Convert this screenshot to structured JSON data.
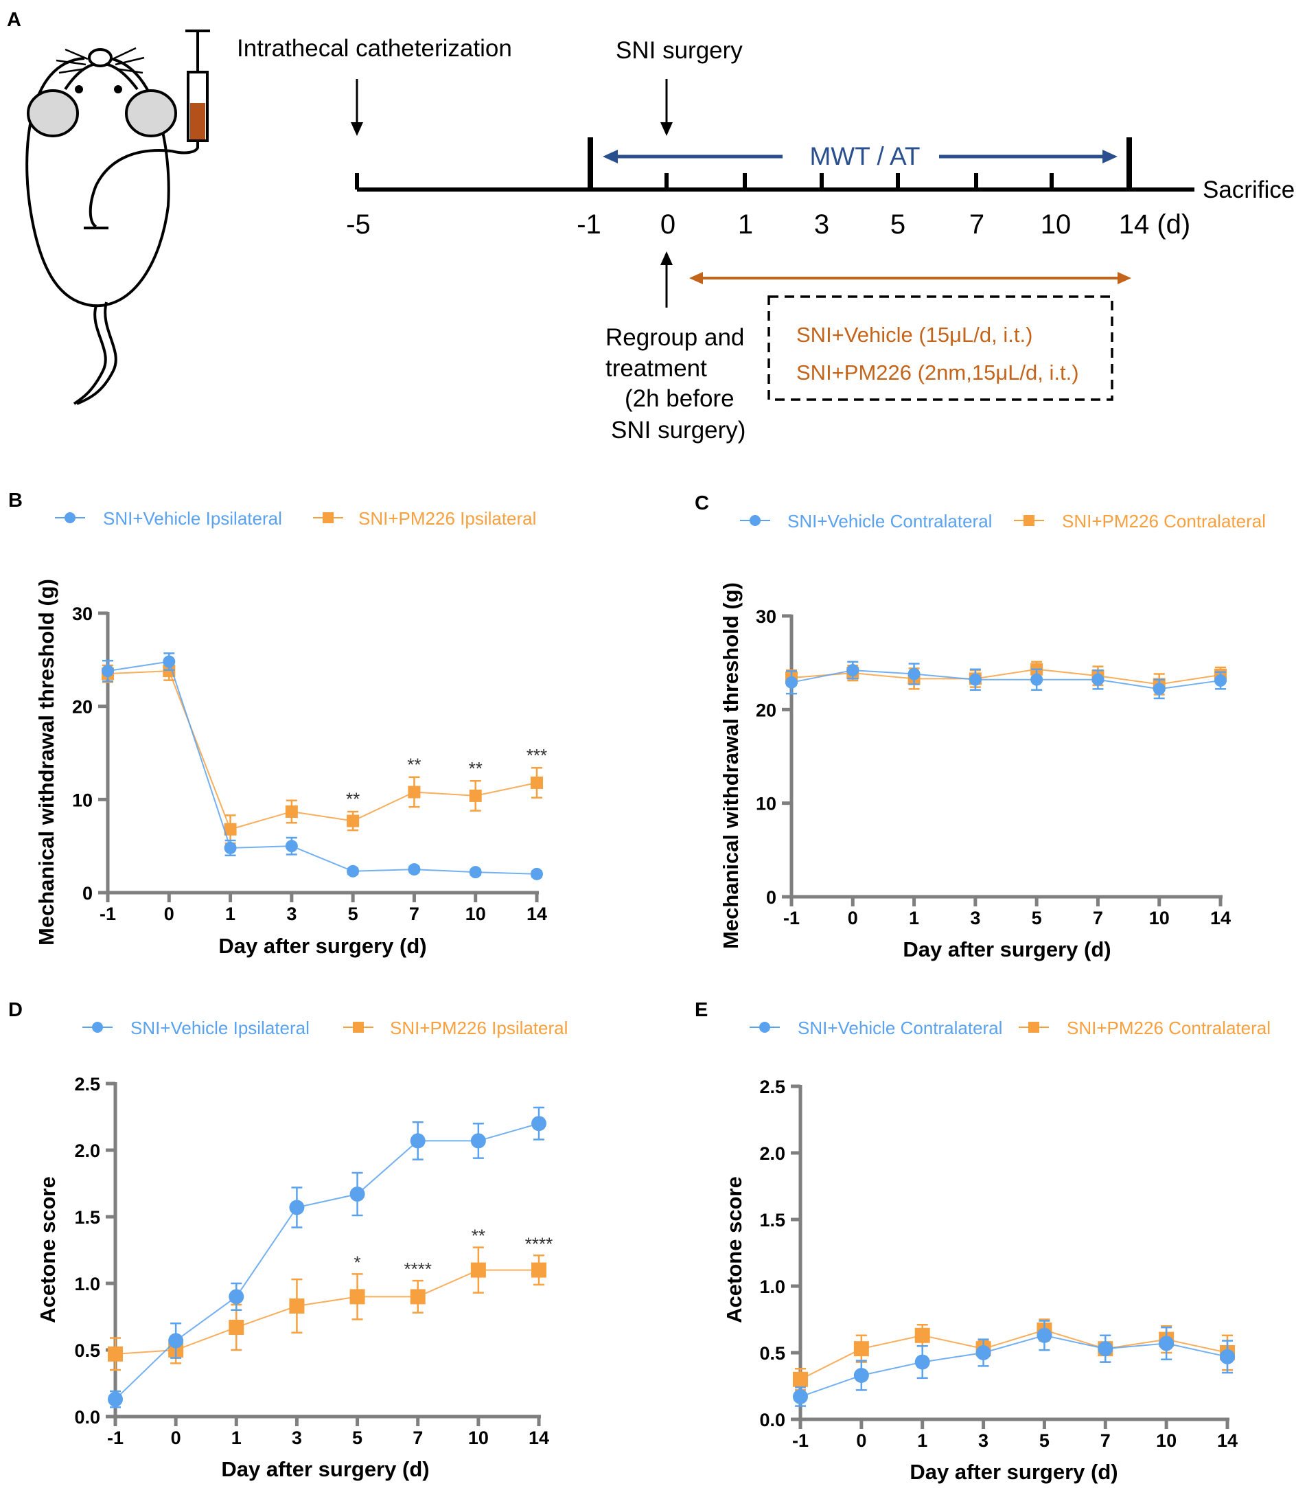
{
  "colors": {
    "vehicle": "#5aa2ee",
    "pm226": "#f7a03f",
    "timeline_blue": "#2a4f8f",
    "timeline_orange": "#c4641a",
    "syringe_fill": "#b4501a",
    "axis": "#7f7f7f",
    "text": "#000000"
  },
  "panel_labels": {
    "a": "A",
    "b": "B",
    "c": "C",
    "d": "D",
    "e": "E"
  },
  "timeline": {
    "catheterization": "Intrathecal catheterization",
    "sni_surgery": "SNI surgery",
    "mwt_label": "MWT / AT",
    "sacrifice": "Sacrifice",
    "ticks": [
      "-5",
      "-1",
      "0",
      "1",
      "3",
      "5",
      "7",
      "10",
      "14 (d)"
    ],
    "regroup_lines": [
      "Regroup  and",
      "treatment",
      "(2h before",
      "SNI surgery)"
    ],
    "groups": [
      "SNI+Vehicle (15μL/d, i.t.)",
      "SNI+PM226 (2nm,15μL/d, i.t.)"
    ]
  },
  "chart_data": [
    {
      "panel": "B",
      "type": "line",
      "categories": [
        "-1",
        "0",
        "1",
        "3",
        "5",
        "7",
        "10",
        "14"
      ],
      "xlabel": "Day after surgery (d)",
      "ylabel": "Mechanical withdrawal threshold (g)",
      "ylim": [
        0,
        30
      ],
      "yticks": [
        "0",
        "10",
        "20",
        "30"
      ],
      "legend_placement": "top",
      "series": [
        {
          "name": "SNI+Vehicle Ipsilateral",
          "marker": "circle",
          "values": [
            23.8,
            24.8,
            4.8,
            5.0,
            2.3,
            2.5,
            2.2,
            2.0
          ],
          "errors": [
            1.1,
            0.9,
            0.8,
            0.9,
            0.3,
            0.3,
            0.3,
            0.3
          ]
        },
        {
          "name": "SNI+PM226 Ipsilateral",
          "marker": "square",
          "values": [
            23.5,
            23.8,
            6.8,
            8.7,
            7.7,
            10.8,
            10.4,
            11.8
          ],
          "errors": [
            0.9,
            1.0,
            1.5,
            1.2,
            1.0,
            1.6,
            1.6,
            1.6
          ]
        }
      ],
      "annotations": [
        {
          "category": "5",
          "text": "**",
          "above_value": 8.8
        },
        {
          "category": "7",
          "text": "**",
          "above_value": 12.5
        },
        {
          "category": "10",
          "text": "**",
          "above_value": 12.1
        },
        {
          "category": "14",
          "text": "***",
          "above_value": 13.5
        }
      ]
    },
    {
      "panel": "C",
      "type": "line",
      "categories": [
        "-1",
        "0",
        "1",
        "3",
        "5",
        "7",
        "10",
        "14"
      ],
      "xlabel": "Day after surgery (d)",
      "ylabel": "Mechanical withdrawal threshold (g)",
      "ylim": [
        0,
        30
      ],
      "yticks": [
        "0",
        "10",
        "20",
        "30"
      ],
      "legend_placement": "top",
      "series": [
        {
          "name": "SNI+Vehicle Contralateral",
          "marker": "circle",
          "values": [
            22.9,
            24.2,
            23.8,
            23.2,
            23.2,
            23.2,
            22.2,
            23.1
          ],
          "errors": [
            1.2,
            0.9,
            1.1,
            1.1,
            1.1,
            1.0,
            1.0,
            0.9
          ]
        },
        {
          "name": "SNI+PM226 Contralateral",
          "marker": "square",
          "values": [
            23.4,
            23.9,
            23.3,
            23.3,
            24.3,
            23.6,
            22.7,
            23.7
          ],
          "errors": [
            0.8,
            0.8,
            1.1,
            0.9,
            0.8,
            1.0,
            1.1,
            0.8
          ]
        }
      ],
      "annotations": []
    },
    {
      "panel": "D",
      "type": "line",
      "categories": [
        "-1",
        "0",
        "1",
        "3",
        "5",
        "7",
        "10",
        "14"
      ],
      "xlabel": "Day after surgery (d)",
      "ylabel": "Acetone score",
      "ylim": [
        0,
        2.5
      ],
      "yticks": [
        "0.0",
        "0.5",
        "1.0",
        "1.5",
        "2.0",
        "2.5"
      ],
      "legend_placement": "top",
      "series": [
        {
          "name": "SNI+Vehicle Ipsilateral",
          "marker": "circle",
          "values": [
            0.13,
            0.57,
            0.9,
            1.57,
            1.67,
            2.07,
            2.07,
            2.2
          ],
          "errors": [
            0.06,
            0.13,
            0.1,
            0.15,
            0.16,
            0.14,
            0.13,
            0.12
          ]
        },
        {
          "name": "SNI+PM226 Ipsilateral",
          "marker": "square",
          "values": [
            0.47,
            0.5,
            0.67,
            0.83,
            0.9,
            0.9,
            1.1,
            1.1
          ],
          "errors": [
            0.12,
            0.1,
            0.17,
            0.2,
            0.17,
            0.12,
            0.17,
            0.11
          ]
        }
      ],
      "annotations": [
        {
          "category": "5",
          "text": "*",
          "above_value": 1.07
        },
        {
          "category": "7",
          "text": "****",
          "above_value": 1.02
        },
        {
          "category": "10",
          "text": "**",
          "above_value": 1.27
        },
        {
          "category": "14",
          "text": "****",
          "above_value": 1.21
        }
      ]
    },
    {
      "panel": "E",
      "type": "line",
      "categories": [
        "-1",
        "0",
        "1",
        "3",
        "5",
        "7",
        "10",
        "14"
      ],
      "xlabel": "Day after surgery (d)",
      "ylabel": "Acetone score",
      "ylim": [
        0,
        2.5
      ],
      "yticks": [
        "0.0",
        "0.5",
        "1.0",
        "1.5",
        "2.0",
        "2.5"
      ],
      "legend_placement": "top",
      "series": [
        {
          "name": "SNI+Vehicle Contralateral",
          "marker": "circle",
          "values": [
            0.17,
            0.33,
            0.43,
            0.5,
            0.63,
            0.53,
            0.57,
            0.47
          ],
          "errors": [
            0.07,
            0.11,
            0.12,
            0.1,
            0.11,
            0.1,
            0.12,
            0.12
          ]
        },
        {
          "name": "SNI+PM226 Contralateral",
          "marker": "square",
          "values": [
            0.3,
            0.53,
            0.63,
            0.53,
            0.67,
            0.53,
            0.6,
            0.5
          ],
          "errors": [
            0.08,
            0.1,
            0.08,
            0.06,
            0.08,
            0.1,
            0.1,
            0.13
          ]
        }
      ],
      "annotations": []
    }
  ]
}
